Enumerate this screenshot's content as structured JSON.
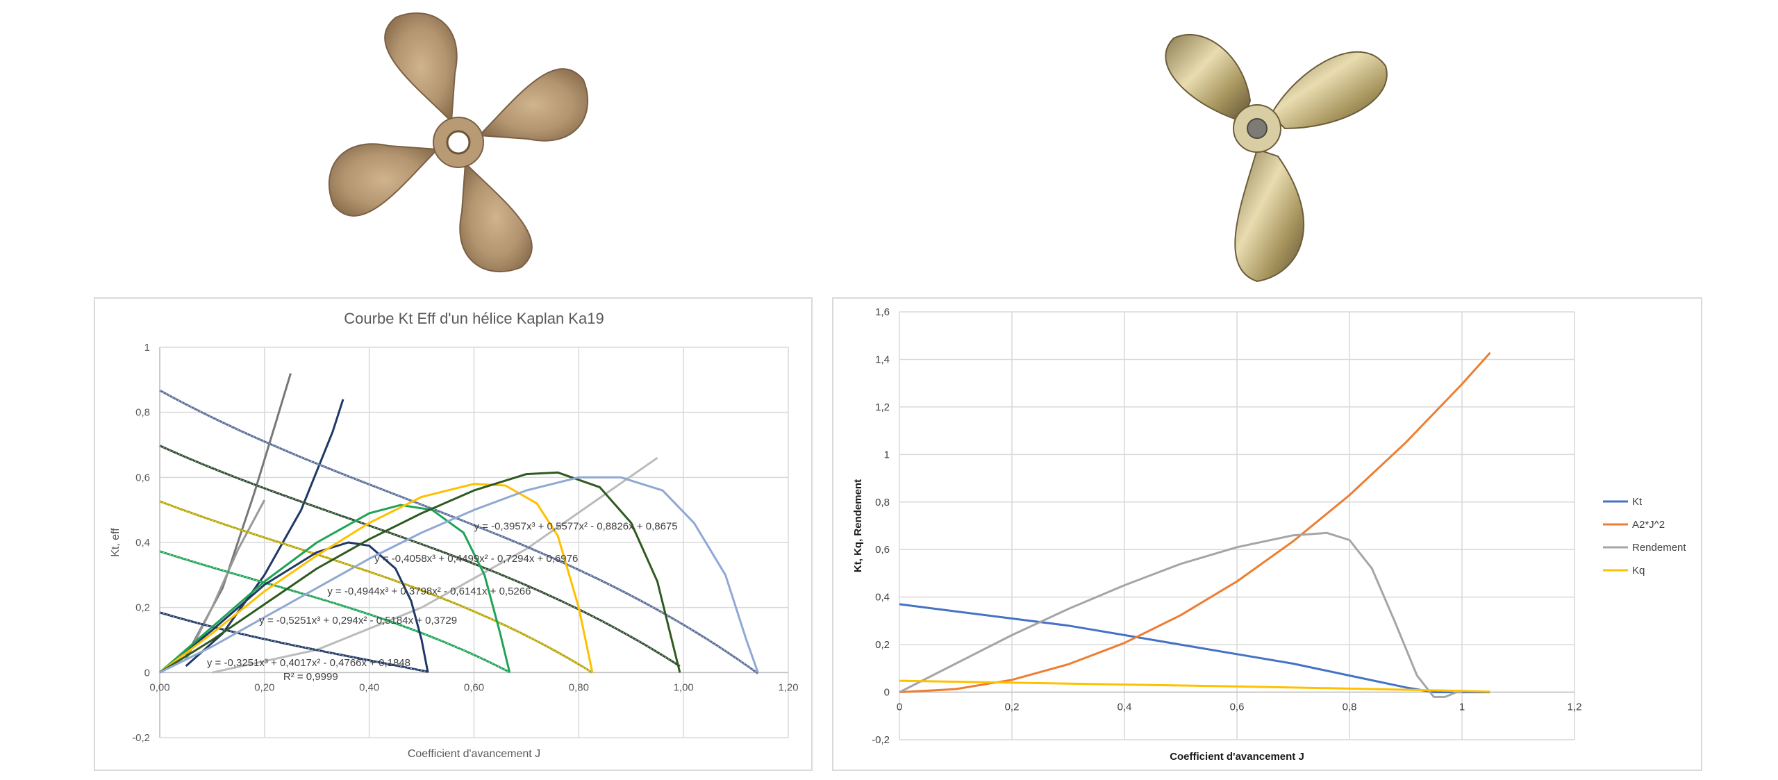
{
  "chart_data": [
    {
      "type": "line",
      "title": "Courbe Kt Eff d'un hélice Kaplan Ka19",
      "xlabel": "Coefficient d'avancement J",
      "ylabel": "Kt, eff",
      "xlim": [
        0,
        1.2
      ],
      "ylim": [
        -0.2,
        1
      ],
      "x_ticks": [
        "0,00",
        "0,20",
        "0,40",
        "0,60",
        "0,80",
        "1,00",
        "1,20"
      ],
      "y_ticks": [
        "-0,2",
        "0",
        "0,2",
        "0,4",
        "0,6",
        "0,8",
        "1"
      ],
      "grid": true,
      "kt_series": [
        {
          "color": "#1f3864",
          "equation": "y = -0,3251x³ + 0,4017x² - 0,4766x + 0,1848",
          "r2": "R² = 0,9999",
          "coef": [
            -0.3251,
            0.4017,
            -0.4766,
            0.1848
          ],
          "xmax": 0.512
        },
        {
          "color": "#1fa355",
          "equation": "y = -0,5251x³ + 0,294x² - 0,5184x + 0,3729",
          "coef": [
            -0.5251,
            0.294,
            -0.5184,
            0.3729
          ],
          "xmax": 0.668
        },
        {
          "color": "#b8a500",
          "equation": "y = -0,4944x³ + 0,3798x² - 0,6141x + 0,5266",
          "coef": [
            -0.4944,
            0.3798,
            -0.6141,
            0.5266
          ],
          "xmax": 0.826
        },
        {
          "color": "#2e4a2e",
          "equation": "y = -0,4058x³ + 0,4499x² - 0,7294x + 0,6976",
          "coef": [
            -0.4058,
            0.4499,
            -0.7294,
            0.6976
          ],
          "xmax": 0.993
        },
        {
          "color": "#5a6e99",
          "equation": "y = -0,3957x³ + 0,5577x² - 0,8826x + 0,8675",
          "coef": [
            -0.3957,
            0.5577,
            -0.8826,
            0.8675
          ],
          "xmax": 1.142
        }
      ],
      "eff_series": [
        {
          "color": "#1f3864",
          "x": [
            0,
            0.1,
            0.2,
            0.3,
            0.36,
            0.4,
            0.45,
            0.48,
            0.5,
            0.512
          ],
          "y": [
            0,
            0.13,
            0.27,
            0.37,
            0.4,
            0.39,
            0.32,
            0.22,
            0.1,
            0
          ]
        },
        {
          "color": "#1fa355",
          "x": [
            0,
            0.1,
            0.2,
            0.3,
            0.4,
            0.46,
            0.52,
            0.58,
            0.62,
            0.65,
            0.668
          ],
          "y": [
            0,
            0.14,
            0.28,
            0.4,
            0.49,
            0.515,
            0.5,
            0.43,
            0.3,
            0.12,
            0
          ]
        },
        {
          "color": "#ffc000",
          "x": [
            0,
            0.1,
            0.2,
            0.3,
            0.4,
            0.5,
            0.6,
            0.66,
            0.72,
            0.76,
            0.8,
            0.826
          ],
          "y": [
            0,
            0.12,
            0.25,
            0.36,
            0.46,
            0.54,
            0.58,
            0.575,
            0.52,
            0.42,
            0.2,
            0
          ]
        },
        {
          "color": "#2e5a1f",
          "x": [
            0,
            0.1,
            0.2,
            0.3,
            0.4,
            0.5,
            0.6,
            0.7,
            0.76,
            0.84,
            0.9,
            0.95,
            0.993
          ],
          "y": [
            0,
            0.1,
            0.21,
            0.32,
            0.41,
            0.49,
            0.56,
            0.61,
            0.615,
            0.57,
            0.46,
            0.28,
            0
          ]
        },
        {
          "color": "#8fa8d4",
          "x": [
            0,
            0.1,
            0.2,
            0.3,
            0.4,
            0.5,
            0.6,
            0.7,
            0.8,
            0.88,
            0.96,
            1.02,
            1.08,
            1.12,
            1.142
          ],
          "y": [
            0,
            0.08,
            0.17,
            0.26,
            0.35,
            0.43,
            0.5,
            0.56,
            0.6,
            0.6,
            0.56,
            0.46,
            0.3,
            0.1,
            0
          ]
        }
      ],
      "kq_lines": [
        {
          "color": "#777777",
          "x": [
            0.05,
            0.12,
            0.18,
            0.22,
            0.25
          ],
          "y": [
            0.05,
            0.26,
            0.55,
            0.76,
            0.92
          ]
        },
        {
          "color": "#1f3864",
          "x": [
            0.05,
            0.12,
            0.2,
            0.27,
            0.33,
            0.35
          ],
          "y": [
            0.02,
            0.12,
            0.3,
            0.5,
            0.74,
            0.84
          ]
        },
        {
          "color": "#999999",
          "x": [
            0.05,
            0.1,
            0.15,
            0.2
          ],
          "y": [
            0.04,
            0.2,
            0.38,
            0.53
          ]
        },
        {
          "color": "#bbbbbb",
          "x": [
            0.1,
            0.3,
            0.5,
            0.7,
            0.95
          ],
          "y": [
            0,
            0.07,
            0.2,
            0.38,
            0.66
          ]
        }
      ]
    },
    {
      "type": "line",
      "title": "",
      "xlabel": "Coefficient d'avancement J",
      "ylabel": "Kt, Kq, Rendement",
      "xlim": [
        0,
        1.2
      ],
      "ylim": [
        -0.2,
        1.6
      ],
      "x_ticks": [
        "0",
        "0,2",
        "0,4",
        "0,6",
        "0,8",
        "1",
        "1,2"
      ],
      "y_ticks": [
        "-0,2",
        "0",
        "0,2",
        "0,4",
        "0,6",
        "0,8",
        "1",
        "1,2",
        "1,4",
        "1,6"
      ],
      "grid": true,
      "legend_position": "right",
      "series": [
        {
          "name": "Kt",
          "color": "#4472c4",
          "x": [
            0,
            0.1,
            0.2,
            0.3,
            0.4,
            0.5,
            0.6,
            0.7,
            0.8,
            0.9,
            0.95,
            1.05
          ],
          "y": [
            0.37,
            0.34,
            0.31,
            0.28,
            0.24,
            0.2,
            0.16,
            0.12,
            0.07,
            0.02,
            0,
            0
          ]
        },
        {
          "name": "A2*J^2",
          "color": "#ed7d31",
          "x": [
            0,
            0.1,
            0.2,
            0.3,
            0.4,
            0.5,
            0.6,
            0.7,
            0.8,
            0.9,
            1.0,
            1.05
          ],
          "y": [
            0,
            0.013,
            0.052,
            0.117,
            0.207,
            0.324,
            0.466,
            0.635,
            0.829,
            1.05,
            1.296,
            1.428
          ]
        },
        {
          "name": "Rendement",
          "color": "#a5a5a5",
          "x": [
            0,
            0.1,
            0.2,
            0.3,
            0.4,
            0.5,
            0.6,
            0.7,
            0.76,
            0.8,
            0.84,
            0.88,
            0.92,
            0.95,
            0.97,
            0.99,
            1.0
          ],
          "y": [
            0,
            0.12,
            0.24,
            0.35,
            0.45,
            0.54,
            0.61,
            0.66,
            0.67,
            0.64,
            0.52,
            0.3,
            0.07,
            -0.02,
            -0.02,
            0,
            0
          ]
        },
        {
          "name": "Kq",
          "color": "#ffc000",
          "x": [
            0,
            0.2,
            0.4,
            0.6,
            0.8,
            1.0,
            1.05
          ],
          "y": [
            0.048,
            0.04,
            0.032,
            0.024,
            0.015,
            0.005,
            0.002
          ]
        }
      ]
    }
  ]
}
